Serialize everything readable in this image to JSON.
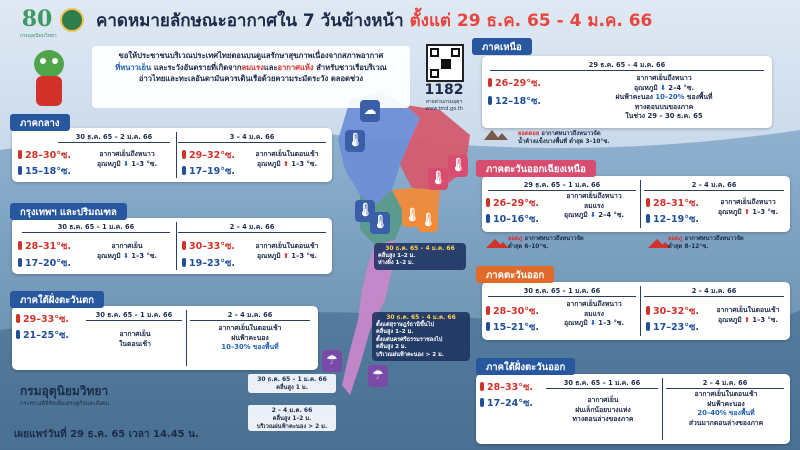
{
  "header": {
    "logo_number": "80",
    "logo_caption": "กรมอุตุนิยมวิทยา",
    "title_main": "คาดหมายลักษณะอากาศใน 7 วันข้างหน้า",
    "title_range": "ตั้งแต่ 29 ธ.ค. 65 - 4 ม.ค. 66"
  },
  "notice": {
    "line1": "ขอให้ประชาชนบริเวณประเทศไทยตอนบนดูแลรักษาสุขภาพเนื่องจากสภาพอากาศ",
    "line2_blue": "ที่หนาวเย็น",
    "line2_mid": " และระวังอันตรายที่เกิดจาก",
    "line2_red1": "ลมแรง",
    "line2_and": "และ",
    "line2_red2": "อากาศแห้ง",
    "line2_end": " สำหรับชาวเรือบริเวณ",
    "line3": "อ่าวไทยและทะเลอันดามันควรเดินเรือด้วยความระมัดระวัง ตลอดช่วง"
  },
  "hotline": {
    "number": "1182",
    "sub1": "สายด่วนกรมอุตุฯ",
    "sub2": "www.tmd.go.th"
  },
  "central": {
    "tag": "ภาคกลาง",
    "p1": {
      "period": "30 ธ.ค. 65 – 2 ม.ค. 66",
      "hot": "28–30°ซ.",
      "cold": "15–18°ซ.",
      "desc1": "อากาศเย็นถึงหนาว",
      "desc2_pre": "อุณหภูมิ",
      "arrow": "⬇",
      "desc2_post": " 1–3 °ซ."
    },
    "p2": {
      "period": "3 – 4 ม.ค. 66",
      "hot": "29–32°ซ.",
      "cold": "17–19°ซ.",
      "desc1": "อากาศเย็นในตอนเช้า",
      "desc2_pre": "อุณหภูมิ",
      "arrow": "⬆",
      "desc2_post": " 1–3 °ซ."
    }
  },
  "bangkok": {
    "tag": "กรุงเทพฯ และปริมณฑล",
    "p1": {
      "period": "30 ธ.ค. 65 – 1 ม.ค. 66",
      "hot": "28–31°ซ.",
      "cold": "17–20°ซ.",
      "desc1": "อากาศเย็น",
      "desc2_pre": "อุณหภูมิ",
      "arrow": "⬇",
      "desc2_post": " 1–3 °ซ."
    },
    "p2": {
      "period": "2 – 4 ม.ค. 66",
      "hot": "30–33°ซ.",
      "cold": "19–23°ซ.",
      "desc1": "อากาศเย็นในตอนเช้า",
      "desc2_pre": "อุณหภูมิ",
      "arrow": "⬆",
      "desc2_post": " 1–3 °ซ."
    }
  },
  "south_west": {
    "tag": "ภาคใต้ฝั่งตะวันตก",
    "hot": "29–33°ซ.",
    "cold": "21–25°ซ.",
    "p1": {
      "period": "30 ธ.ค. 65 – 1 ม.ค. 66",
      "desc1": "อากาศเย็น",
      "desc2": "ในตอนเช้า"
    },
    "p2": {
      "period": "2 – 4 ม.ค. 66",
      "desc1": "อากาศเย็นในตอนเช้า",
      "desc2": "ฝนฟ้าคะนอง",
      "desc3": "10–30% ของพื้นที่"
    }
  },
  "north": {
    "tag": "ภาคเหนือ",
    "period": "29 ธ.ค. 65 – 4 ม.ค. 66",
    "hot": "26–29°ซ.",
    "cold": "12–18°ซ.",
    "desc1": "อากาศเย็นถึงหนาว",
    "desc2_pre": "อุณหภูมิ",
    "arrow": "⬇",
    "desc2_post": " 2–4 °ซ.",
    "desc3_pre": "ฝนฟ้าคะนอง ",
    "desc3_pct": "10–20%",
    "desc3_post": " ของพื้นที่",
    "desc4": "ทางตอนบนของภาค",
    "desc5": "ในช่วง 29 – 30 ธ.ค. 65",
    "note_red": "ยอดดอย",
    "note1": " อากาศหนาวถึงหนาวจัด",
    "note2": "น้ำค้างแข็งบางพื้นที่ ต่ำสุด 3–10°ซ."
  },
  "northeast": {
    "tag": "ภาคตะวันออกเฉียงเหนือ",
    "p1": {
      "period": "29 ธ.ค. 65 – 1 ม.ค. 66",
      "hot": "26–29°ซ.",
      "cold": "10–16°ซ.",
      "desc1": "อากาศเย็นถึงหนาว",
      "desc2": "ลมแรง",
      "desc3_pre": "อุณหภูมิ",
      "arrow": "⬇",
      "desc3_post": " 2–4 °ซ.",
      "note_red": "ยอดภู",
      "note1": " อากาศหนาวถึงหนาวจัด",
      "note2": "ต่ำสุด 6–10°ซ."
    },
    "p2": {
      "period": "2 – 4 ม.ค. 66",
      "hot": "28–31°ซ.",
      "cold": "12–19°ซ.",
      "desc1": "อากาศเย็นถึงหนาว",
      "desc2_pre": "อุณหภูมิ",
      "arrow": "⬆",
      "desc2_post": " 1–3 °ซ.",
      "note_red": "ยอดภู",
      "note1": " อากาศหนาวถึงหนาวจัด",
      "note2": "ต่ำสุด 8–12°ซ."
    }
  },
  "east": {
    "tag": "ภาคตะวันออก",
    "p1": {
      "period": "30 ธ.ค. 65 – 1 ม.ค. 66",
      "hot": "28–30°ซ.",
      "cold": "15–21°ซ.",
      "desc1": "อากาศเย็นถึงหนาว",
      "desc2": "ลมแรง",
      "desc3_pre": "อุณหภูมิ",
      "arrow": "⬇",
      "desc3_post": " 1–3 °ซ."
    },
    "p2": {
      "period": "2 – 4 ม.ค. 66",
      "hot": "30–32°ซ.",
      "cold": "17–23°ซ.",
      "desc1": "อากาศเย็นในตอนเช้า",
      "desc2_pre": "อุณหภูมิ",
      "arrow": "⬆",
      "desc2_post": " 1–3 °ซ."
    }
  },
  "south_east": {
    "tag": "ภาคใต้ฝั่งตะวันออก",
    "hot": "28–33°ซ.",
    "cold": "17–24°ซ.",
    "p1": {
      "period": "30 ธ.ค. 65 – 1 ม.ค. 66",
      "desc1": "อากาศเย็น",
      "desc2": "ฝนเล็กน้อยบางแห่ง",
      "desc3": "ทางตอนล่างของภาค"
    },
    "p2": {
      "period": "2 – 4 ม.ค. 66",
      "desc1": "อากาศเย็นในตอนเช้า",
      "desc2": "ฝนฟ้าคะนอง",
      "desc3": "20–40% ของพื้นที่",
      "desc4": "ส่วนมากตอนล่างของภาค"
    }
  },
  "seas": {
    "gulf_upper": {
      "header": "30 ธ.ค. 65 – 4 ม.ค. 66",
      "line1": "คลื่นสูง 1–2 ม.",
      "line2": "ห่างฝั่ง 1–2 ม."
    },
    "gulf_mid": {
      "header": "30 ธ.ค. 65 – 4 ม.ค. 66",
      "line1": "ตั้งแต่สุราษฎร์ธานีขึ้นไป",
      "line2": "คลื่นสูง 1–2 ม.",
      "line3": "ตั้งแต่นครศรีธรรมราชลงไป",
      "line4": "คลื่นสูง 2 ม.",
      "line5": "บริเวณฝนฟ้าคะนอง > 2 ม."
    },
    "andaman1": {
      "header": "30 ธ.ค. 65 – 1 ม.ค. 66",
      "line1": "คลื่นสูง 1 ม."
    },
    "andaman2": {
      "header": "2 – 4 ม.ค. 66",
      "line1": "คลื่นสูง 1–2 ม.",
      "line2": "บริเวณฝนฟ้าคะนอง > 2 ม."
    }
  },
  "footer": {
    "dept": "กรมอุตุนิยมวิทยา",
    "ministry": "กระทรวงดิจิทัลเพื่อเศรษฐกิจและสังคม",
    "issued": "เผยแพร่วันที่ 29 ธ.ค. 65 เวลา 14.45 น."
  },
  "colors": {
    "title": "#1d2b4a",
    "accent_red": "#e8453c",
    "cold_blue": "#1f4f9a",
    "hot_red": "#d3322b",
    "tag_blue": "#27579f"
  }
}
